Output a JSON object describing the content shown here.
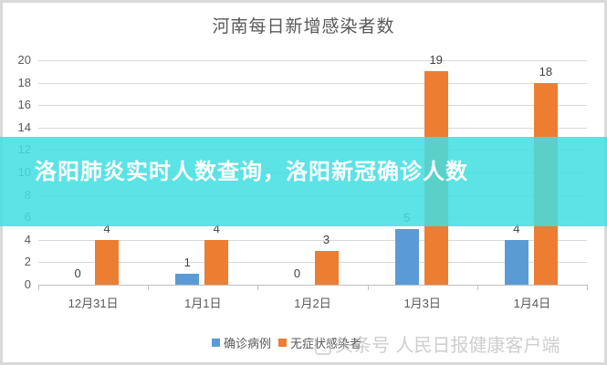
{
  "chart_data": {
    "type": "bar",
    "title": "河南每日新增感染者数",
    "categories": [
      "12月31日",
      "1月1日",
      "1月2日",
      "1月3日",
      "1月4日"
    ],
    "series": [
      {
        "name": "确诊病例",
        "color": "#5b9bd5",
        "values": [
          0,
          1,
          0,
          5,
          4
        ]
      },
      {
        "name": "无症状感染者",
        "color": "#ed7d31",
        "values": [
          4,
          4,
          3,
          19,
          18
        ]
      }
    ],
    "xlabel": "",
    "ylabel": "",
    "ylim": [
      0,
      20
    ],
    "yticks": [
      "0",
      "2",
      "4",
      "6",
      "8",
      "10",
      "12",
      "14",
      "16",
      "18",
      "20"
    ],
    "grid": true,
    "legend_position": "bottom"
  },
  "overlay": {
    "headline": "洛阳肺炎实时人数查询，洛阳新冠确诊人数",
    "band_color": "#40dee2"
  },
  "watermark": {
    "text": "头条号 人民日报健康客户端"
  }
}
